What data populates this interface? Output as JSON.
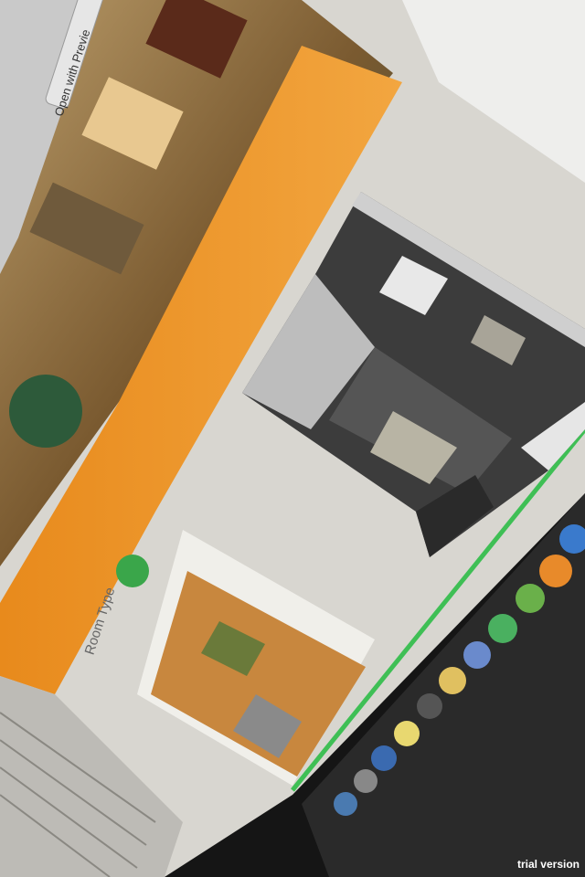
{
  "screen": {
    "button": "Open with Previe",
    "room_type": "Room Type"
  },
  "watermark": "trial version"
}
